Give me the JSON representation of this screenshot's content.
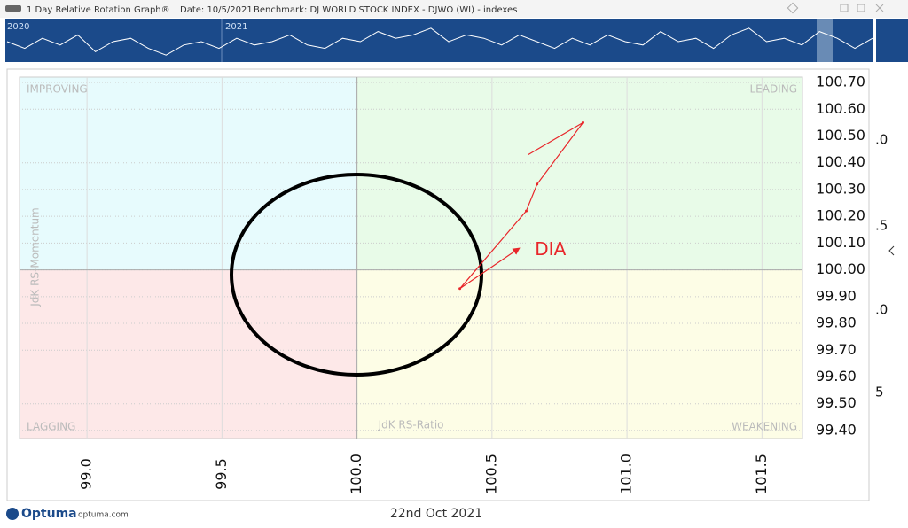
{
  "header": {
    "title": "1 Day Relative Rotation Graph®",
    "date": "Date: 10/5/2021",
    "benchmark": "Benchmark:  DJ WORLD STOCK INDEX - DJWO (WI) - indexes"
  },
  "overview": {
    "labels": [
      "2020",
      "2021"
    ],
    "values": [
      0.5,
      0.3,
      0.6,
      0.4,
      0.7,
      0.2,
      0.5,
      0.6,
      0.3,
      0.1,
      0.4,
      0.5,
      0.3,
      0.6,
      0.4,
      0.5,
      0.7,
      0.4,
      0.3,
      0.6,
      0.5,
      0.8,
      0.6,
      0.7,
      0.9,
      0.5,
      0.7,
      0.6,
      0.4,
      0.7,
      0.5,
      0.3,
      0.6,
      0.4,
      0.7,
      0.5,
      0.4,
      0.8,
      0.5,
      0.6,
      0.3,
      0.7,
      0.9,
      0.5,
      0.6,
      0.4,
      0.8,
      0.6,
      0.3,
      0.6
    ]
  },
  "chart_data": {
    "type": "line",
    "quadrants": {
      "top_left": "IMPROVING",
      "top_right": "LEADING",
      "bottom_left": "LAGGING",
      "bottom_right": "WEAKENING"
    },
    "x_label": "JdK RS-Ratio",
    "y_label": "JdK RS-Momentum",
    "center": [
      100,
      100
    ],
    "x": [
      100.634,
      100.837,
      100.667,
      100.627,
      100.381,
      100.6
    ],
    "series": [
      {
        "name": "DIA",
        "color": "#e8262a",
        "values": [
          100.43,
          100.55,
          100.32,
          100.22,
          99.93,
          100.08
        ]
      }
    ],
    "xlim": [
      98.75,
      101.65
    ],
    "xticks": [
      {
        "value": 99,
        "label": "99.0"
      },
      99.5,
      {
        "value": 100,
        "label": "100.0"
      },
      100.5,
      {
        "value": 101,
        "label": "101.0"
      },
      101.5
    ],
    "ylim": [
      99.37,
      100.72
    ],
    "yticks": [
      {
        "value": 99.4,
        "label": "99.40"
      },
      {
        "value": 99.5,
        "label": "99.50"
      },
      {
        "value": 99.6,
        "label": "99.60"
      },
      {
        "value": 99.7,
        "label": "99.70"
      },
      {
        "value": 99.8,
        "label": "99.80"
      },
      {
        "value": 99.9,
        "label": "99.90"
      },
      {
        "value": 100,
        "label": "100.00"
      },
      {
        "value": 100.1,
        "label": "100.10"
      },
      {
        "value": 100.2,
        "label": "100.20"
      },
      {
        "value": 100.3,
        "label": "100.30"
      },
      {
        "value": 100.4,
        "label": "100.40"
      },
      {
        "value": 100.5,
        "label": "100.50"
      },
      {
        "value": 100.6,
        "label": "100.60"
      },
      {
        "value": 100.7,
        "label": "100.70"
      }
    ],
    "grid": true
  },
  "side_labels": [
    ".0",
    ".5",
    ".0",
    "5"
  ],
  "footer": {
    "brand": "Optuma",
    "site": "optuma.com",
    "date": "22nd Oct 2021"
  }
}
